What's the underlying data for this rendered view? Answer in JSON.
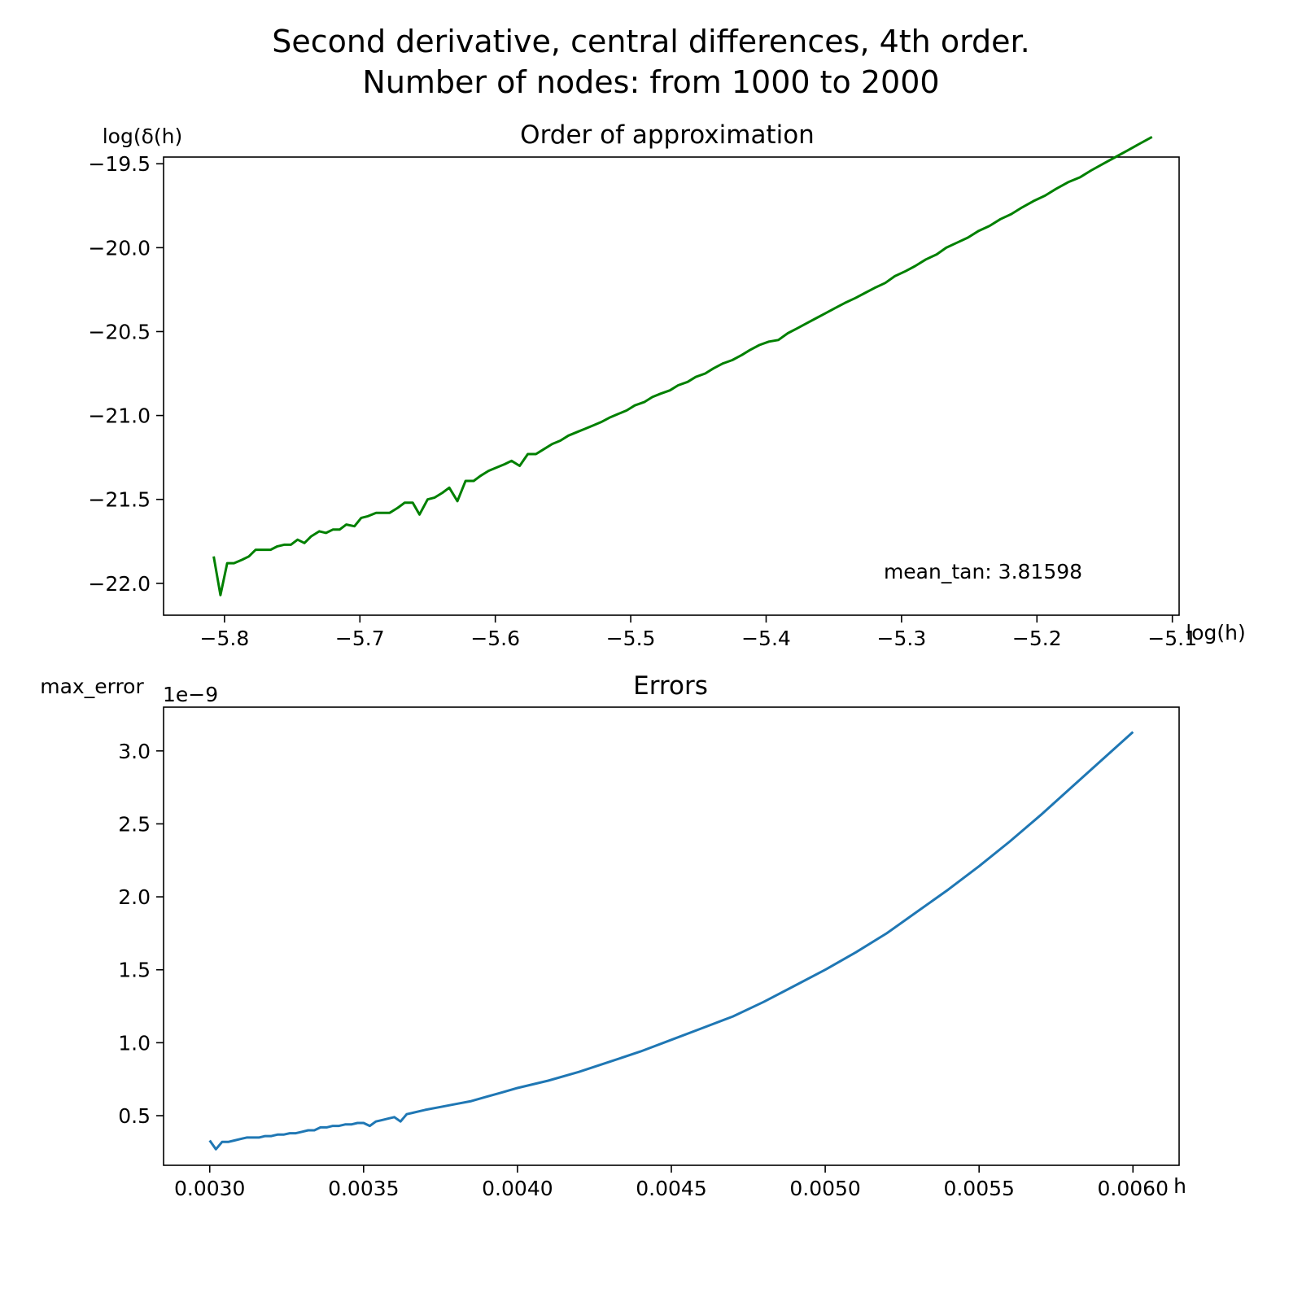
{
  "figure": {
    "title_line1": "Second derivative, central differences, 4th order.",
    "title_line2": "Number of nodes: from 1000 to 2000"
  },
  "chart_data": [
    {
      "type": "line",
      "title": "Order of approximation",
      "xlabel": "log(h)",
      "ylabel": "log(δ(h)",
      "xlim": [
        -5.845,
        -5.095
      ],
      "ylim": [
        -22.19,
        -19.46
      ],
      "xticks": [
        -5.8,
        -5.7,
        -5.6,
        -5.5,
        -5.4,
        -5.3,
        -5.2,
        -5.1
      ],
      "xtick_labels": [
        "−5.8",
        "−5.7",
        "−5.6",
        "−5.5",
        "−5.4",
        "−5.3",
        "−5.2",
        "−5.1"
      ],
      "yticks": [
        -19.5,
        -20.0,
        -20.5,
        -21.0,
        -21.5,
        -22.0
      ],
      "ytick_labels": [
        "−19.5",
        "−20.0",
        "−20.5",
        "−21.0",
        "−21.5",
        "−22.0"
      ],
      "annotation": "mean_tan: 3.81598",
      "color": "#008000",
      "grid": false,
      "series": [
        {
          "x": [
            -5.808,
            -5.803,
            -5.798,
            -5.793,
            -5.787,
            -5.782,
            -5.777,
            -5.772,
            -5.766,
            -5.761,
            -5.756,
            -5.751,
            -5.746,
            -5.741,
            -5.736,
            -5.73,
            -5.725,
            -5.72,
            -5.715,
            -5.71,
            -5.704,
            -5.699,
            -5.694,
            -5.688,
            -5.683,
            -5.678,
            -5.672,
            -5.667,
            -5.661,
            -5.656,
            -5.65,
            -5.645,
            -5.639,
            -5.634,
            -5.628,
            -5.622,
            -5.616,
            -5.611,
            -5.605,
            -5.599,
            -5.593,
            -5.588,
            -5.582,
            -5.576,
            -5.57,
            -5.564,
            -5.558,
            -5.552,
            -5.546,
            -5.54,
            -5.534,
            -5.528,
            -5.522,
            -5.515,
            -5.509,
            -5.503,
            -5.497,
            -5.49,
            -5.484,
            -5.478,
            -5.471,
            -5.465,
            -5.458,
            -5.452,
            -5.445,
            -5.439,
            -5.432,
            -5.425,
            -5.418,
            -5.412,
            -5.405,
            -5.398,
            -5.391,
            -5.384,
            -5.377,
            -5.37,
            -5.363,
            -5.356,
            -5.349,
            -5.342,
            -5.334,
            -5.327,
            -5.32,
            -5.312,
            -5.305,
            -5.297,
            -5.29,
            -5.282,
            -5.274,
            -5.267,
            -5.259,
            -5.251,
            -5.243,
            -5.235,
            -5.227,
            -5.219,
            -5.211,
            -5.202,
            -5.194,
            -5.186,
            -5.177,
            -5.168,
            -5.16,
            -5.151,
            -5.142,
            -5.133,
            -5.124,
            -5.115
          ],
          "y": [
            -21.84,
            -22.07,
            -21.88,
            -21.88,
            -21.86,
            -21.84,
            -21.8,
            -21.8,
            -21.8,
            -21.78,
            -21.77,
            -21.77,
            -21.74,
            -21.76,
            -21.72,
            -21.69,
            -21.7,
            -21.68,
            -21.68,
            -21.65,
            -21.66,
            -21.61,
            -21.6,
            -21.58,
            -21.58,
            -21.58,
            -21.55,
            -21.52,
            -21.52,
            -21.59,
            -21.5,
            -21.49,
            -21.46,
            -21.43,
            -21.51,
            -21.39,
            -21.39,
            -21.36,
            -21.33,
            -21.31,
            -21.29,
            -21.27,
            -21.3,
            -21.23,
            -21.23,
            -21.2,
            -21.17,
            -21.15,
            -21.12,
            -21.1,
            -21.08,
            -21.06,
            -21.04,
            -21.01,
            -20.99,
            -20.97,
            -20.94,
            -20.92,
            -20.89,
            -20.87,
            -20.85,
            -20.82,
            -20.8,
            -20.77,
            -20.75,
            -20.72,
            -20.69,
            -20.67,
            -20.64,
            -20.61,
            -20.58,
            -20.56,
            -20.55,
            -20.51,
            -20.48,
            -20.45,
            -20.42,
            -20.39,
            -20.36,
            -20.33,
            -20.3,
            -20.27,
            -20.24,
            -20.21,
            -20.17,
            -20.14,
            -20.11,
            -20.07,
            -20.04,
            -20.0,
            -19.97,
            -19.94,
            -19.9,
            -19.87,
            -19.83,
            -19.8,
            -19.76,
            -19.72,
            -19.69,
            -19.65,
            -19.61,
            -19.58,
            -19.54,
            -19.5,
            -19.46,
            -19.42,
            -19.38,
            -19.34
          ]
        }
      ]
    },
    {
      "type": "line",
      "title": "Errors",
      "xlabel": "h",
      "ylabel": "max_error",
      "offset_label": "1e−9",
      "xlim": [
        0.00285,
        0.00615
      ],
      "ylim": [
        0.16,
        3.3
      ],
      "xticks": [
        0.003,
        0.0035,
        0.004,
        0.0045,
        0.005,
        0.0055,
        0.006
      ],
      "xtick_labels": [
        "0.0030",
        "0.0035",
        "0.0040",
        "0.0045",
        "0.0050",
        "0.0055",
        "0.0060"
      ],
      "yticks": [
        0.5,
        1.0,
        1.5,
        2.0,
        2.5,
        3.0
      ],
      "ytick_labels": [
        "0.5",
        "1.0",
        "1.5",
        "2.0",
        "2.5",
        "3.0"
      ],
      "color": "#1f77b4",
      "grid": false,
      "series": [
        {
          "x": [
            0.003,
            0.00302,
            0.00304,
            0.00306,
            0.00308,
            0.0031,
            0.00312,
            0.00314,
            0.00316,
            0.00318,
            0.0032,
            0.00322,
            0.00324,
            0.00326,
            0.00328,
            0.0033,
            0.00332,
            0.00334,
            0.00336,
            0.00338,
            0.0034,
            0.00342,
            0.00344,
            0.00346,
            0.00348,
            0.0035,
            0.00352,
            0.00354,
            0.00356,
            0.00358,
            0.0036,
            0.00362,
            0.00364,
            0.00366,
            0.00368,
            0.0037,
            0.00375,
            0.0038,
            0.00385,
            0.0039,
            0.00395,
            0.004,
            0.0041,
            0.0042,
            0.0043,
            0.0044,
            0.0045,
            0.0046,
            0.0047,
            0.0048,
            0.0049,
            0.005,
            0.0051,
            0.0052,
            0.0053,
            0.0054,
            0.0055,
            0.0056,
            0.0057,
            0.0058,
            0.0059,
            0.006
          ],
          "y": [
            0.33,
            0.27,
            0.32,
            0.32,
            0.33,
            0.34,
            0.35,
            0.35,
            0.35,
            0.36,
            0.36,
            0.37,
            0.37,
            0.38,
            0.38,
            0.39,
            0.4,
            0.4,
            0.42,
            0.42,
            0.43,
            0.43,
            0.44,
            0.44,
            0.45,
            0.45,
            0.43,
            0.46,
            0.47,
            0.48,
            0.49,
            0.46,
            0.51,
            0.52,
            0.53,
            0.54,
            0.56,
            0.58,
            0.6,
            0.63,
            0.66,
            0.69,
            0.74,
            0.8,
            0.87,
            0.94,
            1.02,
            1.1,
            1.18,
            1.28,
            1.39,
            1.5,
            1.62,
            1.75,
            1.9,
            2.05,
            2.21,
            2.38,
            2.56,
            2.75,
            2.94,
            3.13
          ]
        }
      ]
    }
  ]
}
